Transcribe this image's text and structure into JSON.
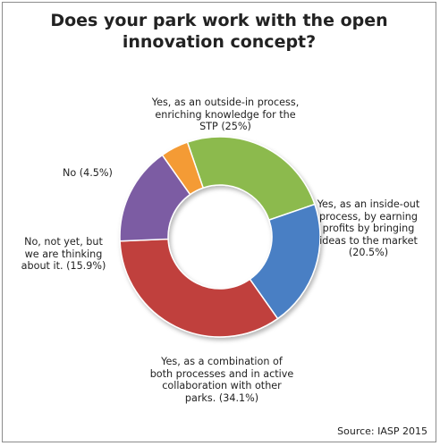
{
  "chart_data": {
    "type": "donut",
    "title_lines": [
      "Does your park work with the open",
      "innovation concept?"
    ],
    "slices": [
      {
        "label_lines": [
          "Yes, as an outside-in process,",
          "enriching knowledge for the",
          "STP (25%)"
        ],
        "value": 25,
        "color": "#8cba4e"
      },
      {
        "label_lines": [
          "Yes, as an inside-out",
          "process, by earning",
          "profits by bringing",
          "ideas to the market",
          "(20.5%)"
        ],
        "value": 20.5,
        "color": "#4a7fc4"
      },
      {
        "label_lines": [
          "Yes, as a combination of",
          "both processes and in active",
          "collaboration with other",
          "parks. (34.1%)"
        ],
        "value": 34.1,
        "color": "#c0413e"
      },
      {
        "label_lines": [
          "No, not yet, but",
          "we are thinking",
          "about it. (15.9%)"
        ],
        "value": 15.9,
        "color": "#7b5ca3"
      },
      {
        "label_lines": [
          "No (4.5%)"
        ],
        "value": 4.5,
        "color": "#f49b34"
      }
    ],
    "start_angle_deg": -19,
    "legend": "none"
  },
  "source": "Source: IASP 2015"
}
